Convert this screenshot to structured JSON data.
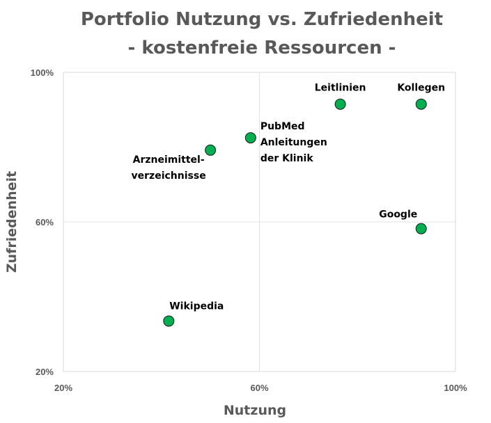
{
  "chart_data": {
    "type": "scatter",
    "title": [
      "Portfolio Nutzung vs. Zufriedenheit",
      "- kostenfreie Ressourcen -"
    ],
    "xlabel": "Nutzung",
    "ylabel": "Zufriedenheit",
    "xlim": [
      20,
      100
    ],
    "ylim": [
      20,
      100
    ],
    "x_ticks": [
      "20%",
      "60%",
      "100%"
    ],
    "y_ticks": [
      "20%",
      "60%",
      "100%"
    ],
    "grid": true,
    "marker_color": "#00b050",
    "points": [
      {
        "label": [
          "Leitlinien"
        ],
        "x": 76.5,
        "y": 91.5,
        "label_pos": "above"
      },
      {
        "label": [
          "Kollegen"
        ],
        "x": 93,
        "y": 91.5,
        "label_pos": "above"
      },
      {
        "label": [
          "PubMed",
          "Anleitungen",
          "der Klinik"
        ],
        "x": 58.2,
        "y": 82.5,
        "label_pos": "right"
      },
      {
        "label": [
          "Arzneimittel-",
          "verzeichnisse"
        ],
        "x": 50,
        "y": 79.2,
        "label_pos": "below-left"
      },
      {
        "label": [
          "Google"
        ],
        "x": 93,
        "y": 58.2,
        "label_pos": "above-left"
      },
      {
        "label": [
          "Wikipedia"
        ],
        "x": 41.5,
        "y": 33.5,
        "label_pos": "above-right"
      }
    ]
  }
}
